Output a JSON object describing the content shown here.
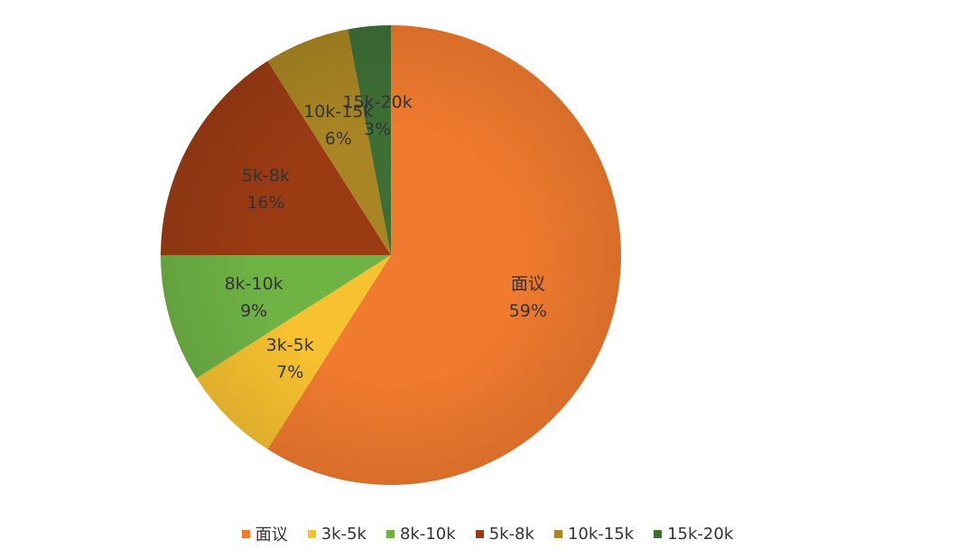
{
  "chart_data": {
    "type": "pie",
    "title": "",
    "start_angle_deg": 0,
    "direction": "clockwise",
    "slices": [
      {
        "label": "面议",
        "pct_label": "59%",
        "value": 59,
        "color": "#f07a2e"
      },
      {
        "label": "3k-5k",
        "pct_label": "7%",
        "value": 7,
        "color": "#f7c12f"
      },
      {
        "label": "8k-10k",
        "pct_label": "9%",
        "value": 9,
        "color": "#6fb345"
      },
      {
        "label": "5k-8k",
        "pct_label": "16%",
        "value": 16,
        "color": "#9b3b13"
      },
      {
        "label": "10k-15k",
        "pct_label": "6%",
        "value": 6,
        "color": "#a98623"
      },
      {
        "label": "15k-20k",
        "pct_label": "3%",
        "value": 3,
        "color": "#3d6f35"
      }
    ],
    "legend": {
      "position": "bottom"
    }
  }
}
